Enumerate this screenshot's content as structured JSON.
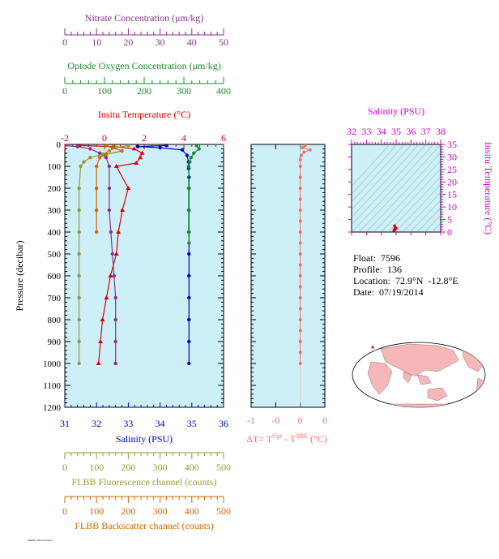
{
  "chart_data": [
    {
      "type": "line",
      "panel": "main-profile",
      "y_axis": {
        "label": "Pressure (decibar)",
        "range": [
          0,
          1200
        ],
        "inverted": true,
        "ticks": [
          0,
          100,
          200,
          300,
          400,
          500,
          600,
          700,
          800,
          900,
          1000,
          1100,
          1200
        ]
      },
      "x_axes": [
        {
          "key": "nitrate",
          "label": "Nitrate Concentration (μm/kg)",
          "range": [
            0,
            50
          ],
          "ticks": [
            0,
            10,
            20,
            30,
            40,
            50
          ],
          "color": "#8b2f8b"
        },
        {
          "key": "oxygen",
          "label": "Optode Oxygen Concentration (μm/kg)",
          "range": [
            0,
            400
          ],
          "ticks": [
            0,
            100,
            200,
            300,
            400
          ],
          "color": "#1a8c2a"
        },
        {
          "key": "temperature",
          "label": "Insitu Temperature (°C)",
          "range": [
            -2,
            6
          ],
          "ticks": [
            -2,
            0,
            2,
            4,
            6
          ],
          "color": "#dd0000"
        },
        {
          "key": "salinity",
          "label": "Salinity (PSU)",
          "range": [
            31,
            36
          ],
          "ticks": [
            31,
            32,
            33,
            34,
            35,
            36
          ],
          "color": "#0000cc"
        },
        {
          "key": "fluorescence",
          "label": "FLBB Fluorescence channel (counts)",
          "range": [
            0,
            500
          ],
          "ticks": [
            0,
            100,
            200,
            300,
            400,
            500
          ],
          "color": "#999933"
        },
        {
          "key": "backscatter",
          "label": "FLBB Backscatter channel (counts)",
          "range": [
            0,
            500
          ],
          "ticks": [
            0,
            100,
            200,
            300,
            400,
            500
          ],
          "color": "#cc6600"
        }
      ],
      "series": [
        {
          "key": "salinity",
          "color": "#0000cc",
          "marker": "circle",
          "points": [
            [
              34.2,
              5
            ],
            [
              33.3,
              10
            ],
            [
              34.0,
              15
            ],
            [
              34.7,
              25
            ],
            [
              34.85,
              50
            ],
            [
              34.9,
              80
            ],
            [
              34.9,
              110
            ],
            [
              34.91,
              150
            ],
            [
              34.91,
              200
            ],
            [
              34.91,
              300
            ],
            [
              34.91,
              400
            ],
            [
              34.91,
              500
            ],
            [
              34.91,
              600
            ],
            [
              34.91,
              700
            ],
            [
              34.91,
              800
            ],
            [
              34.91,
              900
            ],
            [
              34.91,
              1000
            ]
          ]
        },
        {
          "key": "temperature",
          "color": "#dd0000",
          "marker": "triangle",
          "points": [
            [
              -1.3,
              5
            ],
            [
              0.5,
              10
            ],
            [
              1.5,
              20
            ],
            [
              1.9,
              40
            ],
            [
              1.8,
              60
            ],
            [
              1.6,
              85
            ],
            [
              0.6,
              100
            ],
            [
              1.2,
              200
            ],
            [
              0.9,
              300
            ],
            [
              0.7,
              400
            ],
            [
              0.6,
              500
            ],
            [
              0.3,
              600
            ],
            [
              0.1,
              700
            ],
            [
              -0.1,
              800
            ],
            [
              -0.2,
              900
            ],
            [
              -0.3,
              1000
            ]
          ]
        },
        {
          "key": "oxygen",
          "color": "#1a8c2a",
          "marker": "circle",
          "points": [
            [
              332,
              5
            ],
            [
              338,
              20
            ],
            [
              325,
              40
            ],
            [
              318,
              60
            ],
            [
              315,
              80
            ],
            [
              312,
              100
            ],
            [
              312,
              200
            ],
            [
              312,
              300
            ],
            [
              312,
              400
            ],
            [
              313,
              450
            ]
          ]
        },
        {
          "key": "nitrate",
          "color": "#8b2f8b",
          "marker": "circle",
          "points": [
            [
              0,
              5
            ],
            [
              4,
              10
            ],
            [
              8,
              20
            ],
            [
              11,
              40
            ],
            [
              13,
              60
            ],
            [
              14,
              100
            ],
            [
              14,
              200
            ],
            [
              14,
              300
            ],
            [
              14.5,
              400
            ],
            [
              15,
              500
            ],
            [
              15.5,
              600
            ],
            [
              16,
              700
            ],
            [
              16,
              800
            ],
            [
              16,
              900
            ],
            [
              16,
              1000
            ]
          ]
        },
        {
          "key": "fluorescence",
          "color": "#999933",
          "marker": "circle",
          "points": [
            [
              200,
              5
            ],
            [
              160,
              15
            ],
            [
              140,
              30
            ],
            [
              120,
              45
            ],
            [
              80,
              60
            ],
            [
              60,
              80
            ],
            [
              50,
              100
            ],
            [
              45,
              200
            ],
            [
              45,
              300
            ],
            [
              45,
              400
            ],
            [
              45,
              500
            ],
            [
              45,
              600
            ],
            [
              45,
              700
            ],
            [
              45,
              800
            ],
            [
              45,
              900
            ],
            [
              45,
              1000
            ]
          ]
        },
        {
          "key": "backscatter",
          "color": "#cc6600",
          "marker": "circle",
          "points": [
            [
              130,
              5
            ],
            [
              150,
              15
            ],
            [
              180,
              30
            ],
            [
              130,
              45
            ],
            [
              110,
              60
            ],
            [
              100,
              100
            ],
            [
              100,
              200
            ],
            [
              100,
              300
            ],
            [
              100,
              400
            ]
          ]
        }
      ]
    },
    {
      "type": "scatter",
      "panel": "delta-t",
      "xlabel_parts": [
        "ΔT= T",
        "Opt",
        " - T",
        "SBE",
        " (°C)"
      ],
      "x_range": [
        -1,
        0.5
      ],
      "x_ticks": [
        {
          "v": -1,
          "label": "-1"
        },
        {
          "v": -0.5,
          "label": "-0"
        },
        {
          "v": 0,
          "label": "0"
        },
        {
          "v": 0.5,
          "label": "0"
        }
      ],
      "y_range": [
        0,
        1200
      ],
      "color": "#f07070",
      "points": [
        [
          0.1,
          5
        ],
        [
          0.05,
          15
        ],
        [
          0.2,
          25
        ],
        [
          0.08,
          35
        ],
        [
          0.02,
          50
        ],
        [
          0,
          70
        ],
        [
          0,
          100
        ],
        [
          0,
          150
        ],
        [
          0,
          200
        ],
        [
          0,
          250
        ],
        [
          0,
          300
        ],
        [
          0,
          350
        ],
        [
          0,
          400
        ],
        [
          0,
          450
        ],
        [
          0,
          500
        ],
        [
          0,
          550
        ],
        [
          0,
          600
        ],
        [
          0,
          650
        ],
        [
          0,
          700
        ],
        [
          0,
          750
        ],
        [
          0,
          800
        ],
        [
          0,
          850
        ],
        [
          0,
          900
        ],
        [
          0,
          950
        ],
        [
          0,
          1000
        ]
      ]
    },
    {
      "type": "scatter",
      "panel": "ts-diagram",
      "title": "Salinity (PSU)",
      "xlabel": "Salinity (PSU)",
      "ylabel": "Insitu Temperature (°C)",
      "x_range": [
        32,
        38
      ],
      "x_ticks": [
        32,
        33,
        34,
        35,
        36,
        37,
        38
      ],
      "y_range": [
        0,
        35
      ],
      "y_ticks": [
        0,
        5,
        10,
        15,
        20,
        25,
        30,
        35
      ],
      "color": "#dd0000",
      "points": [
        [
          34.85,
          0.5
        ],
        [
          34.9,
          1.2
        ],
        [
          34.95,
          1.8
        ],
        [
          34.9,
          2.5
        ],
        [
          34.92,
          1.0
        ],
        [
          34.88,
          0.8
        ],
        [
          35.0,
          1.5
        ]
      ]
    }
  ],
  "info": {
    "float": "Float:  7596",
    "profile": "Profile:  136",
    "location": "Location:  72.9°N  -12.8°E",
    "date": "Date:  07/19/2014"
  },
  "map": {
    "marker_lat": 72.9,
    "marker_lon": -12.8,
    "land_color": "#f5b7b7",
    "ocean_color": "#ffffff"
  },
  "footer": "MBARI 7596 07/19/2014"
}
